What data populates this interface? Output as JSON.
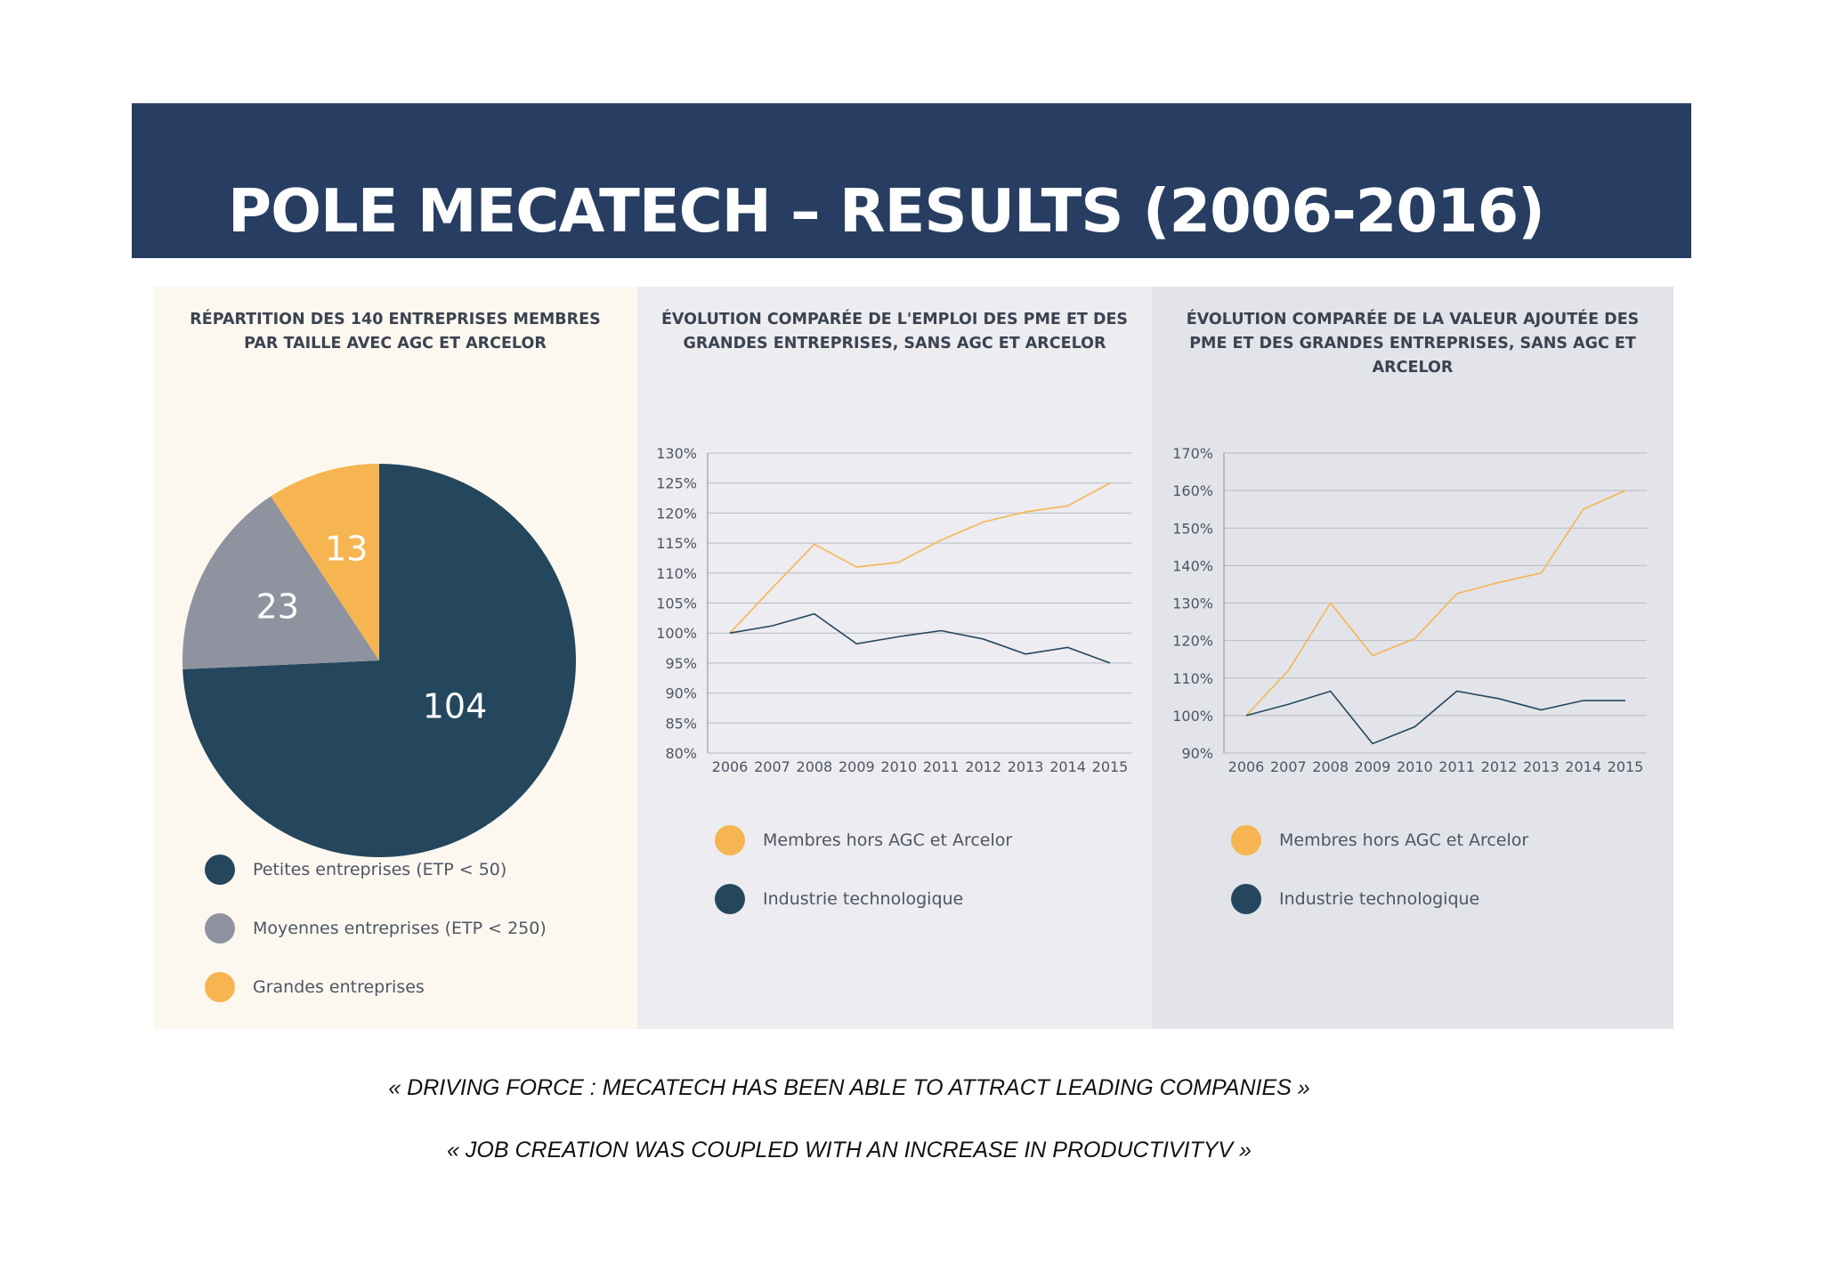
{
  "header": {
    "title": "POLE MECATECH – RESULTS (2006-2016)"
  },
  "colors": {
    "header_bg": "#273e62",
    "dark": "#24475d",
    "gray": "#8f939f",
    "orange": "#f6b550"
  },
  "panels": [
    {
      "title": "RÉPARTITION DES 140 ENTREPRISES MEMBRES PAR TAILLE AVEC AGC ET ARCELOR",
      "legend": [
        "Petites entreprises (ETP < 50)",
        "Moyennes entreprises (ETP < 250)",
        "Grandes entreprises"
      ]
    },
    {
      "title": "ÉVOLUTION COMPARÉE DE L'EMPLOI DES PME ET DES GRANDES ENTREPRISES, SANS AGC ET ARCELOR",
      "legend": [
        "Membres hors AGC et Arcelor",
        "Industrie technologique"
      ]
    },
    {
      "title": "ÉVOLUTION COMPARÉE DE LA VALEUR AJOUTÉE DES PME ET DES GRANDES ENTREPRISES, SANS AGC ET ARCELOR",
      "legend": [
        "Membres hors AGC et Arcelor",
        "Industrie technologique"
      ]
    }
  ],
  "quotes": [
    "« DRIVING FORCE : MECATECH HAS BEEN ABLE TO ATTRACT LEADING COMPANIES »",
    "« JOB CREATION WAS COUPLED WITH AN INCREASE IN PRODUCTIVITYV »"
  ],
  "chart_data": [
    {
      "type": "pie",
      "title": "RÉPARTITION DES 140 ENTREPRISES MEMBRES PAR TAILLE AVEC AGC ET ARCELOR",
      "slices": [
        {
          "label": "Petites entreprises (ETP < 50)",
          "value": 104,
          "color": "#24475d"
        },
        {
          "label": "Moyennes entreprises (ETP < 250)",
          "value": 23,
          "color": "#8f939f"
        },
        {
          "label": "Grandes entreprises",
          "value": 13,
          "color": "#f6b550"
        }
      ],
      "legend_position": "bottom"
    },
    {
      "type": "line",
      "title": "ÉVOLUTION COMPARÉE DE L'EMPLOI DES PME ET DES GRANDES ENTREPRISES, SANS AGC ET ARCELOR",
      "x": [
        2006,
        2007,
        2008,
        2009,
        2010,
        2011,
        2012,
        2013,
        2014,
        2015
      ],
      "ylim": [
        80,
        130
      ],
      "y_ticks": [
        "80%",
        "85%",
        "90%",
        "95%",
        "100%",
        "105%",
        "110%",
        "115%",
        "120%",
        "125%",
        "130%"
      ],
      "y_tick_values": [
        80,
        85,
        90,
        95,
        100,
        105,
        110,
        115,
        120,
        125,
        130
      ],
      "grid": true,
      "legend_position": "bottom",
      "series": [
        {
          "name": "Membres hors AGC et Arcelor",
          "color": "#f6b550",
          "values": [
            100,
            107.5,
            114.8,
            111,
            111.8,
            115.5,
            118.5,
            120.2,
            121.2,
            125
          ]
        },
        {
          "name": "Industrie technologique",
          "color": "#24475d",
          "values": [
            100,
            101.2,
            103.2,
            98.2,
            99.4,
            100.4,
            99,
            96.5,
            97.6,
            95
          ]
        }
      ]
    },
    {
      "type": "line",
      "title": "ÉVOLUTION COMPARÉE DE LA VALEUR AJOUTÉE DES PME ET DES GRANDES ENTREPRISES, SANS AGC ET ARCELOR",
      "x": [
        2006,
        2007,
        2008,
        2009,
        2010,
        2011,
        2012,
        2013,
        2014,
        2015
      ],
      "ylim": [
        90,
        170
      ],
      "y_ticks": [
        "90%",
        "100%",
        "110%",
        "120%",
        "130%",
        "140%",
        "150%",
        "160%",
        "170%"
      ],
      "y_tick_values": [
        90,
        100,
        110,
        120,
        130,
        140,
        150,
        160,
        170
      ],
      "grid": true,
      "legend_position": "bottom",
      "series": [
        {
          "name": "Membres hors AGC et Arcelor",
          "color": "#f6b550",
          "values": [
            100,
            112,
            130,
            116,
            120.5,
            132.5,
            135.5,
            138,
            155,
            160
          ]
        },
        {
          "name": "Industrie technologique",
          "color": "#24475d",
          "values": [
            100,
            103,
            106.5,
            92.5,
            97,
            106.5,
            104.5,
            101.5,
            104,
            104
          ]
        }
      ]
    }
  ]
}
